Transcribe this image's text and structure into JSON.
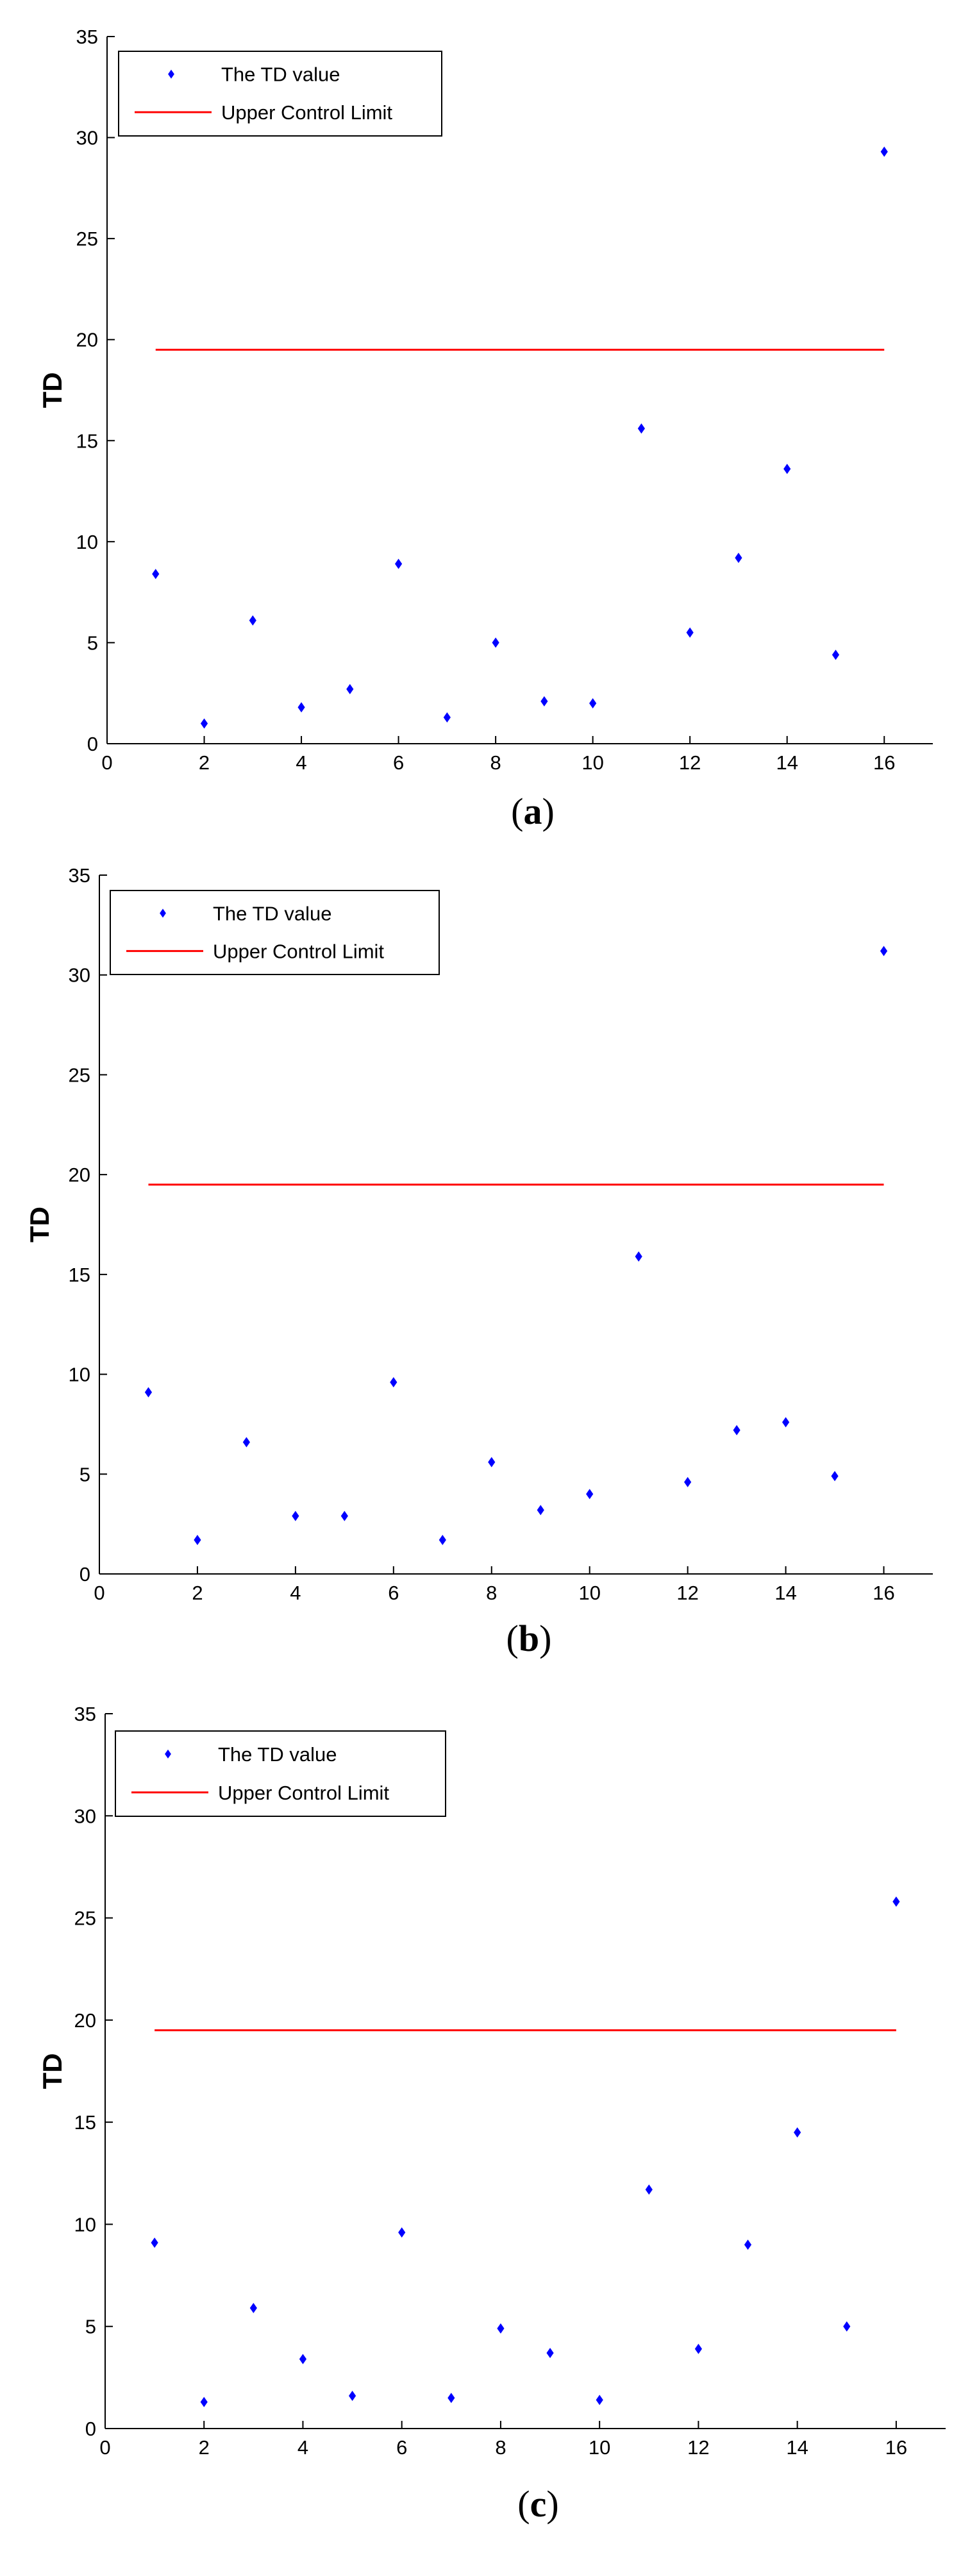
{
  "colors": {
    "points": "#0000ff",
    "limit": "#ff0000",
    "axes": "#000000"
  },
  "legend": {
    "points_label": "The TD value",
    "limit_label": "Upper Control Limit"
  },
  "chart_data": [
    {
      "type": "scatter",
      "panel": "a",
      "ylabel": "TD",
      "xlim": [
        0,
        17
      ],
      "ylim": [
        0,
        35
      ],
      "xticks": [
        0,
        2,
        4,
        6,
        8,
        10,
        12,
        14,
        16
      ],
      "yticks": [
        0,
        5,
        10,
        15,
        20,
        25,
        30,
        35
      ],
      "series": [
        {
          "name": "The TD value",
          "type": "scatter",
          "x": [
            1,
            2,
            3,
            4,
            5,
            6,
            7,
            8,
            9,
            10,
            11,
            12,
            13,
            14,
            15,
            16
          ],
          "y": [
            8.4,
            1.0,
            6.1,
            1.8,
            2.7,
            8.9,
            1.3,
            5.0,
            2.1,
            2.0,
            15.6,
            5.5,
            9.2,
            13.6,
            4.4,
            29.3
          ]
        },
        {
          "name": "Upper Control Limit",
          "type": "line",
          "x": [
            1,
            16
          ],
          "y": [
            19.5,
            19.5
          ]
        }
      ],
      "legend_position": "top-left",
      "grid": false,
      "caption": {
        "open": "(",
        "letter": "a",
        "close": ")"
      }
    },
    {
      "type": "scatter",
      "panel": "b",
      "ylabel": "TD",
      "xlim": [
        0,
        17
      ],
      "ylim": [
        0,
        35
      ],
      "xticks": [
        0,
        2,
        4,
        6,
        8,
        10,
        12,
        14,
        16
      ],
      "yticks": [
        0,
        5,
        10,
        15,
        20,
        25,
        30,
        35
      ],
      "series": [
        {
          "name": "The TD value",
          "type": "scatter",
          "x": [
            1,
            2,
            3,
            4,
            5,
            6,
            7,
            8,
            9,
            10,
            11,
            12,
            13,
            14,
            15,
            16
          ],
          "y": [
            9.1,
            1.7,
            6.6,
            2.9,
            2.9,
            9.6,
            1.7,
            5.6,
            3.2,
            4.0,
            15.9,
            4.6,
            7.2,
            7.6,
            4.9,
            31.2
          ]
        },
        {
          "name": "Upper Control Limit",
          "type": "line",
          "x": [
            1,
            16
          ],
          "y": [
            19.5,
            19.5
          ]
        }
      ],
      "legend_position": "top-left",
      "grid": false,
      "caption": {
        "open": "(",
        "letter": "b",
        "close": ")"
      }
    },
    {
      "type": "scatter",
      "panel": "c",
      "ylabel": "TD",
      "xlim": [
        0,
        17
      ],
      "ylim": [
        0,
        35
      ],
      "xticks": [
        0,
        2,
        4,
        6,
        8,
        10,
        12,
        14,
        16
      ],
      "yticks": [
        0,
        5,
        10,
        15,
        20,
        25,
        30,
        35
      ],
      "series": [
        {
          "name": "The TD value",
          "type": "scatter",
          "x": [
            1,
            2,
            3,
            4,
            5,
            6,
            7,
            8,
            9,
            10,
            11,
            12,
            13,
            14,
            15,
            16
          ],
          "y": [
            9.1,
            1.3,
            5.9,
            3.4,
            1.6,
            9.6,
            1.5,
            4.9,
            3.7,
            1.4,
            11.7,
            3.9,
            9.0,
            14.5,
            5.0,
            25.8
          ]
        },
        {
          "name": "Upper Control Limit",
          "type": "line",
          "x": [
            1,
            16
          ],
          "y": [
            19.5,
            19.5
          ]
        }
      ],
      "legend_position": "top-left",
      "grid": false,
      "caption": {
        "open": "(",
        "letter": "c",
        "close": ")"
      }
    }
  ]
}
